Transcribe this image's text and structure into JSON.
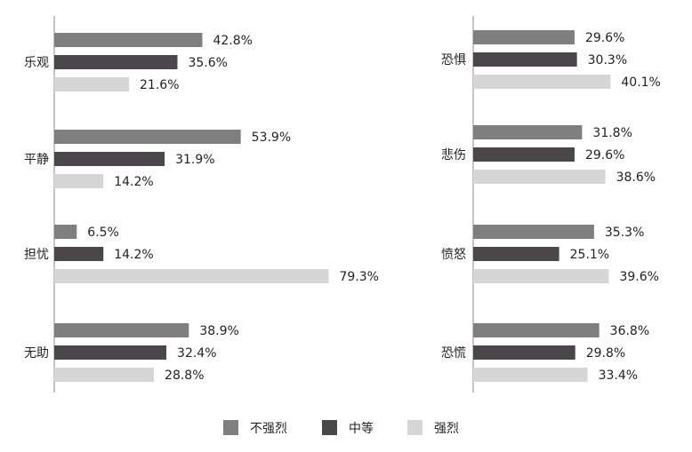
{
  "chart_data": [
    {
      "type": "bar",
      "orientation": "horizontal",
      "categories": [
        "乐观",
        "平静",
        "担忧",
        "无助"
      ],
      "series": [
        {
          "name": "不强烈",
          "values": [
            42.8,
            53.9,
            6.5,
            38.9
          ]
        },
        {
          "name": "中等",
          "values": [
            35.6,
            31.9,
            14.2,
            32.4
          ]
        },
        {
          "name": "强烈",
          "values": [
            21.6,
            14.2,
            79.3,
            28.8
          ]
        }
      ],
      "value_labels": [
        [
          "42.8%",
          "53.9%",
          "6.5%",
          "38.9%"
        ],
        [
          "35.6%",
          "31.9%",
          "14.2%",
          "32.4%"
        ],
        [
          "21.6%",
          "14.2%",
          "79.3%",
          "28.8%"
        ]
      ],
      "xlim": [
        0,
        100
      ],
      "grid": false
    },
    {
      "type": "bar",
      "orientation": "horizontal",
      "categories": [
        "恐惧",
        "悲伤",
        "愤怒",
        "恐慌"
      ],
      "series": [
        {
          "name": "不强烈",
          "values": [
            29.6,
            31.8,
            35.3,
            36.8
          ]
        },
        {
          "name": "中等",
          "values": [
            30.3,
            29.6,
            25.1,
            29.8
          ]
        },
        {
          "name": "强烈",
          "values": [
            40.1,
            38.6,
            39.6,
            33.4
          ]
        }
      ],
      "value_labels": [
        [
          "29.6%",
          "31.8%",
          "35.3%",
          "36.8%"
        ],
        [
          "30.3%",
          "29.6%",
          "25.1%",
          "29.8%"
        ],
        [
          "40.1%",
          "38.6%",
          "39.6%",
          "33.4%"
        ]
      ],
      "xlim": [
        0,
        100
      ],
      "grid": false
    }
  ],
  "legend": {
    "placement": "bottom-center",
    "items": [
      {
        "label": "不强烈",
        "color": "#7f7f7f"
      },
      {
        "label": "中等",
        "color": "#4a4649"
      },
      {
        "label": "强烈",
        "color": "#d6d6d6"
      }
    ]
  },
  "colors": {
    "series": [
      "#7f7f7f",
      "#4a4649",
      "#d6d6d6"
    ],
    "axis": "#888888",
    "text": "#222222"
  }
}
